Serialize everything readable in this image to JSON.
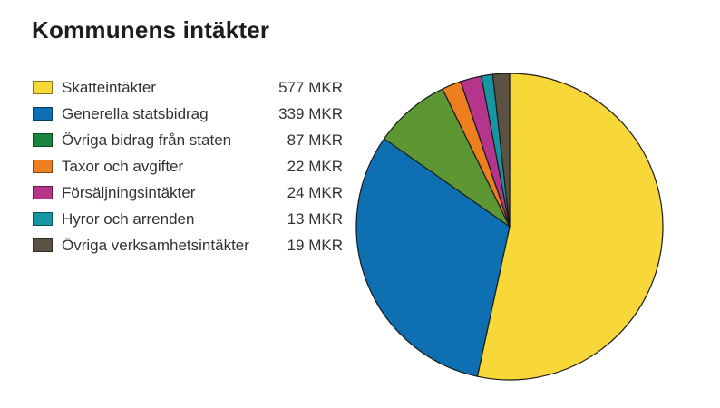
{
  "chart_data": {
    "type": "pie",
    "title": "Kommunens intäkter",
    "categories": [
      "Skatteintäkter",
      "Generella statsbidrag",
      "Övriga bidrag från staten",
      "Taxor och avgifter",
      "Försäljningsintäkter",
      "Hyror och arrenden",
      "Övriga verksamhetsintäkter"
    ],
    "values": [
      577,
      339,
      87,
      22,
      24,
      13,
      19
    ],
    "unit": "MKR",
    "value_labels": [
      "577 MKR",
      "339 MKR",
      "87 MKR",
      "22 MKR",
      "24 MKR",
      "13 MKR",
      "19 MKR"
    ],
    "slice_colors": [
      "#F8D839",
      "#0E6FB2",
      "#5C9733",
      "#EE7F1E",
      "#B5348C",
      "#1596A2",
      "#5C5243"
    ],
    "legend_colors": [
      "#F8D839",
      "#0E6FB2",
      "#17873C",
      "#EE7F1E",
      "#B5348C",
      "#1596A2",
      "#5C5243"
    ],
    "stroke_color": "#1A1A1A",
    "start_angle_deg": 0,
    "direction": "clockwise",
    "legend_position": "left",
    "grid": false
  }
}
